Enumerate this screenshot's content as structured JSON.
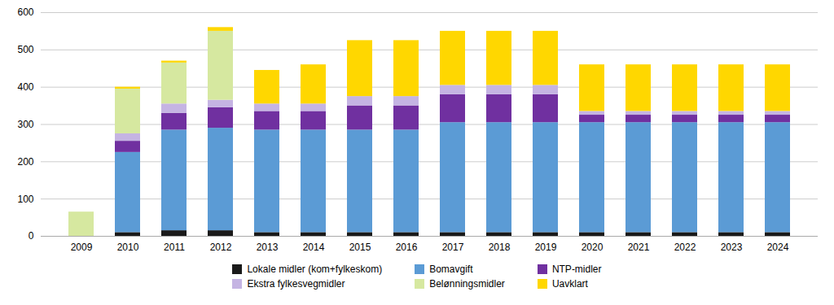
{
  "chart_data": {
    "type": "bar",
    "stacked": true,
    "categories": [
      "2009",
      "2010",
      "2011",
      "2012",
      "2013",
      "2014",
      "2015",
      "2016",
      "2017",
      "2018",
      "2019",
      "2020",
      "2021",
      "2022",
      "2023",
      "2024"
    ],
    "series": [
      {
        "name": "Lokale midler (kom+fylkeskom)",
        "color": "#1a1a1a",
        "values": [
          0,
          10,
          15,
          15,
          10,
          10,
          10,
          10,
          10,
          10,
          10,
          10,
          10,
          10,
          10,
          10
        ]
      },
      {
        "name": "Bomavgift",
        "color": "#5B9BD5",
        "values": [
          0,
          215,
          270,
          275,
          275,
          275,
          275,
          275,
          295,
          295,
          295,
          295,
          295,
          295,
          295,
          295
        ]
      },
      {
        "name": "NTP-midler",
        "color": "#7030A0",
        "values": [
          0,
          30,
          45,
          55,
          50,
          50,
          65,
          65,
          75,
          75,
          75,
          20,
          20,
          20,
          20,
          20
        ]
      },
      {
        "name": "Ekstra fylkesvegmidler",
        "color": "#C5B4E3",
        "values": [
          0,
          20,
          25,
          20,
          20,
          20,
          25,
          25,
          25,
          25,
          25,
          10,
          10,
          10,
          10,
          10
        ]
      },
      {
        "name": "Belønningsmidler",
        "color": "#D6E8A0",
        "values": [
          65,
          120,
          110,
          185,
          0,
          0,
          0,
          0,
          0,
          0,
          0,
          0,
          0,
          0,
          0,
          0
        ]
      },
      {
        "name": "Uavklart",
        "color": "#FFD700",
        "values": [
          0,
          5,
          5,
          10,
          90,
          105,
          150,
          150,
          145,
          145,
          145,
          125,
          125,
          125,
          125,
          125
        ]
      }
    ],
    "ylim": [
      0,
      600
    ],
    "yticks": [
      0,
      100,
      200,
      300,
      400,
      500,
      600
    ],
    "grid": true,
    "legend": "bottom"
  }
}
